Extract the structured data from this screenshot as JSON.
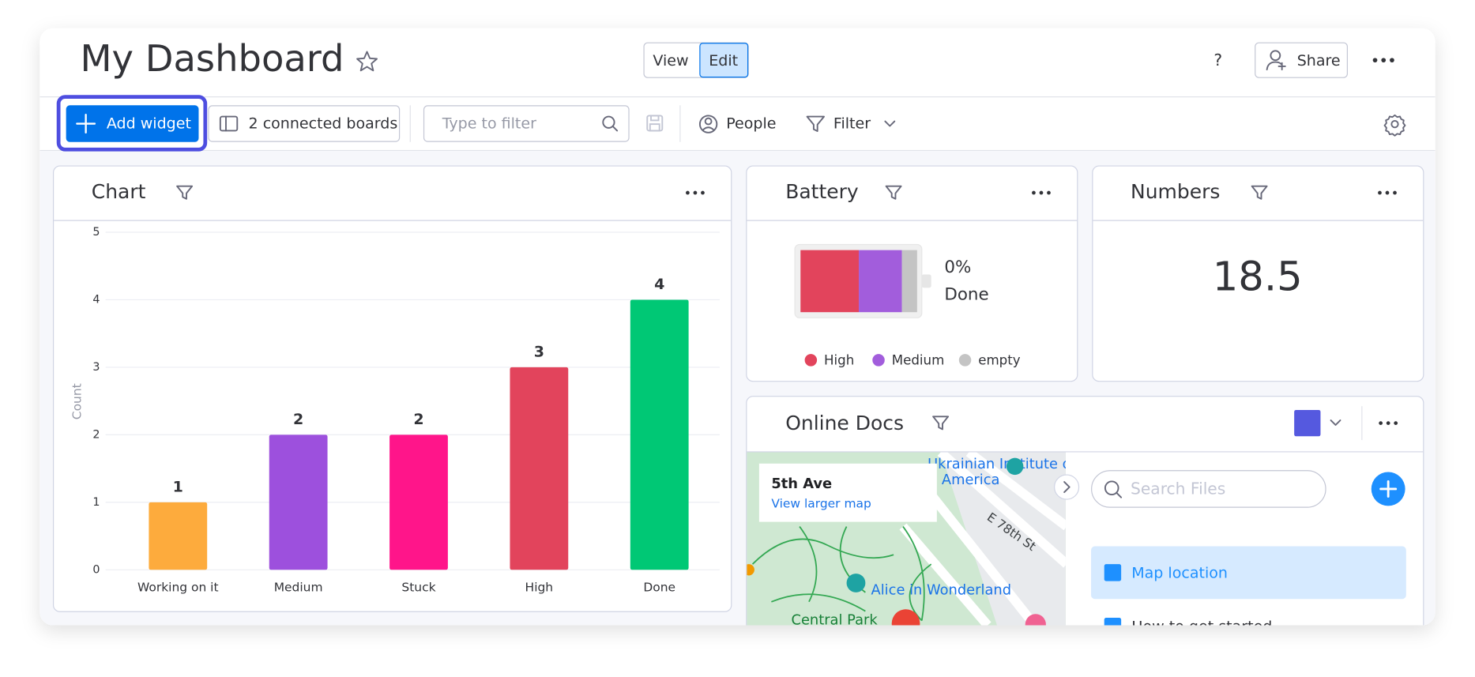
{
  "header": {
    "title": "My Dashboard",
    "view": "View",
    "edit": "Edit",
    "help": "?",
    "share": "Share"
  },
  "toolbar": {
    "add_widget": "Add widget",
    "connected_boards": "2 connected boards",
    "filter_placeholder": "Type to filter",
    "people": "People",
    "filter": "Filter"
  },
  "chart_widget": {
    "title": "Chart"
  },
  "chart_data": {
    "type": "bar",
    "y_label": "Count",
    "categories": [
      "Working on it",
      "Medium",
      "Stuck",
      "High",
      "Done"
    ],
    "values": [
      1,
      2,
      2,
      3,
      4
    ],
    "colors": [
      "#fdab3d",
      "#9d50dd",
      "#ff158a",
      "#e2445c",
      "#00c875"
    ],
    "ylim": [
      0,
      5
    ],
    "yticks": [
      0,
      1,
      2,
      3,
      4,
      5
    ],
    "grid": true
  },
  "battery": {
    "title": "Battery",
    "percent_label": "0%",
    "status": "Done",
    "segments": [
      {
        "name": "High",
        "color": "#e2445c",
        "value": 50
      },
      {
        "name": "Medium",
        "color": "#a25ddc",
        "value": 37
      },
      {
        "name": "empty",
        "color": "#c4c4c4",
        "value": 13
      }
    ]
  },
  "numbers": {
    "title": "Numbers",
    "value": "18.5"
  },
  "online_docs": {
    "title": "Online Docs",
    "map": {
      "place": "5th Ave",
      "link": "View larger map",
      "labels": [
        "Ukrainian Institute of",
        "America",
        "E 78th St",
        "Alice in Wonderland",
        "Central Park"
      ]
    },
    "search_placeholder": "Search Files",
    "files": [
      "Map location",
      "How to get started"
    ]
  }
}
